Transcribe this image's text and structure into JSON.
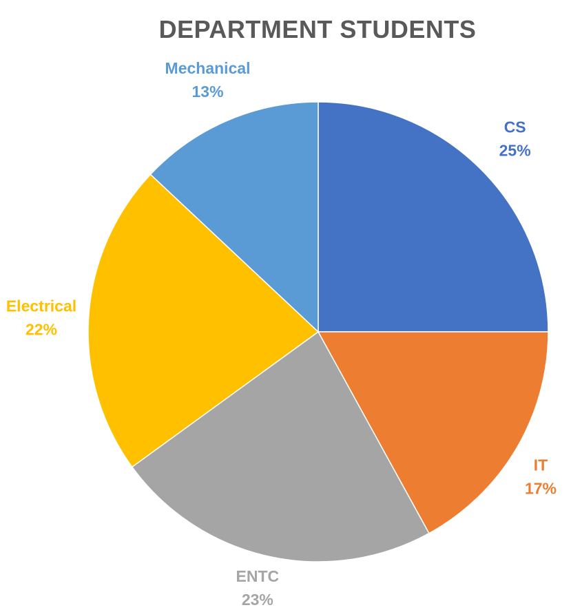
{
  "chart_data": {
    "type": "pie",
    "title": "DEPARTMENT STUDENTS",
    "slices": [
      {
        "name": "CS",
        "value": 25,
        "label": "25%",
        "color": "#4472C4"
      },
      {
        "name": "IT",
        "value": 17,
        "label": "17%",
        "color": "#ED7D31"
      },
      {
        "name": "ENTC",
        "value": 23,
        "label": "23%",
        "color": "#A5A5A5"
      },
      {
        "name": "Electrical",
        "value": 22,
        "label": "22%",
        "color": "#FFC000"
      },
      {
        "name": "Mechanical",
        "value": 13,
        "label": "13%",
        "color": "#5B9BD5"
      }
    ],
    "start_angle": "12 o'clock",
    "direction": "clockwise",
    "legend": "none",
    "data_labels": "outside, category name and percentage, colored to match slice"
  }
}
